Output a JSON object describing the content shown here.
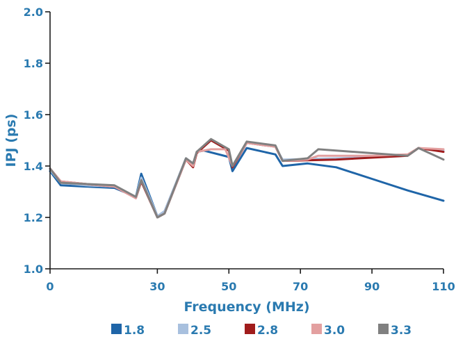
{
  "chart_data": {
    "type": "line",
    "xlabel": "Frequency (MHz)",
    "ylabel": "IPJ (ps)",
    "xlim": [
      0,
      110
    ],
    "ylim": [
      1.0,
      2.0
    ],
    "x_ticks": [
      "0",
      "30",
      "50",
      "70",
      "90",
      "110"
    ],
    "x_tick_values": [
      0,
      30,
      50,
      70,
      90,
      110
    ],
    "y_ticks": [
      "1.0",
      "1.2",
      "1.4",
      "1.6",
      "1.8",
      "2.0"
    ],
    "y_tick_values": [
      1.0,
      1.2,
      1.4,
      1.6,
      1.8,
      2.0
    ],
    "grid": false,
    "legend_position": "bottom",
    "series": [
      {
        "name": "1.8",
        "color": "#1f65a8",
        "points": [
          [
            0,
            1.38
          ],
          [
            3,
            1.325
          ],
          [
            10,
            1.32
          ],
          [
            18,
            1.315
          ],
          [
            24,
            1.28
          ],
          [
            25.5,
            1.37
          ],
          [
            30,
            1.205
          ],
          [
            32,
            1.22
          ],
          [
            38,
            1.43
          ],
          [
            40,
            1.4
          ],
          [
            41,
            1.455
          ],
          [
            43,
            1.46
          ],
          [
            50,
            1.435
          ],
          [
            51,
            1.38
          ],
          [
            55,
            1.47
          ],
          [
            63,
            1.445
          ],
          [
            65,
            1.4
          ],
          [
            72,
            1.41
          ],
          [
            80,
            1.395
          ],
          [
            90,
            1.35
          ],
          [
            100,
            1.305
          ],
          [
            110,
            1.265
          ]
        ]
      },
      {
        "name": "2.5",
        "color": "#a8c0de",
        "points": [
          [
            0,
            1.385
          ],
          [
            3,
            1.335
          ],
          [
            10,
            1.325
          ],
          [
            18,
            1.32
          ],
          [
            24,
            1.28
          ],
          [
            25.5,
            1.355
          ],
          [
            30,
            1.205
          ],
          [
            32,
            1.225
          ],
          [
            38,
            1.43
          ],
          [
            40,
            1.41
          ],
          [
            41,
            1.455
          ],
          [
            45,
            1.5
          ],
          [
            50,
            1.46
          ],
          [
            51,
            1.4
          ],
          [
            55,
            1.49
          ],
          [
            63,
            1.475
          ],
          [
            65,
            1.425
          ],
          [
            80,
            1.43
          ],
          [
            100,
            1.44
          ],
          [
            103,
            1.47
          ],
          [
            110,
            1.46
          ]
        ]
      },
      {
        "name": "2.8",
        "color": "#a01c1c",
        "points": [
          [
            0,
            1.39
          ],
          [
            3,
            1.34
          ],
          [
            10,
            1.33
          ],
          [
            18,
            1.32
          ],
          [
            24,
            1.275
          ],
          [
            25.5,
            1.34
          ],
          [
            30,
            1.2
          ],
          [
            32,
            1.215
          ],
          [
            38,
            1.425
          ],
          [
            40,
            1.395
          ],
          [
            41,
            1.45
          ],
          [
            45,
            1.5
          ],
          [
            50,
            1.46
          ],
          [
            51,
            1.395
          ],
          [
            55,
            1.49
          ],
          [
            63,
            1.475
          ],
          [
            65,
            1.42
          ],
          [
            80,
            1.425
          ],
          [
            100,
            1.44
          ],
          [
            103,
            1.47
          ],
          [
            110,
            1.455
          ]
        ]
      },
      {
        "name": "3.0",
        "color": "#e3a0a0",
        "points": [
          [
            0,
            1.39
          ],
          [
            3,
            1.34
          ],
          [
            10,
            1.33
          ],
          [
            18,
            1.32
          ],
          [
            24,
            1.275
          ],
          [
            25.5,
            1.345
          ],
          [
            30,
            1.2
          ],
          [
            32,
            1.215
          ],
          [
            38,
            1.425
          ],
          [
            40,
            1.4
          ],
          [
            41,
            1.455
          ],
          [
            45,
            1.465
          ],
          [
            49,
            1.465
          ],
          [
            51,
            1.4
          ],
          [
            55,
            1.49
          ],
          [
            63,
            1.475
          ],
          [
            65,
            1.42
          ],
          [
            72,
            1.425
          ],
          [
            75,
            1.44
          ],
          [
            90,
            1.44
          ],
          [
            100,
            1.445
          ],
          [
            103,
            1.47
          ],
          [
            110,
            1.465
          ]
        ]
      },
      {
        "name": "3.3",
        "color": "#808080",
        "points": [
          [
            0,
            1.39
          ],
          [
            3,
            1.335
          ],
          [
            10,
            1.33
          ],
          [
            18,
            1.325
          ],
          [
            24,
            1.28
          ],
          [
            25.5,
            1.345
          ],
          [
            30,
            1.2
          ],
          [
            32,
            1.215
          ],
          [
            38,
            1.43
          ],
          [
            40,
            1.41
          ],
          [
            41,
            1.455
          ],
          [
            45,
            1.505
          ],
          [
            50,
            1.465
          ],
          [
            51,
            1.4
          ],
          [
            55,
            1.495
          ],
          [
            63,
            1.48
          ],
          [
            65,
            1.42
          ],
          [
            72,
            1.43
          ],
          [
            75,
            1.465
          ],
          [
            90,
            1.45
          ],
          [
            100,
            1.44
          ],
          [
            103,
            1.47
          ],
          [
            110,
            1.425
          ]
        ]
      }
    ]
  }
}
